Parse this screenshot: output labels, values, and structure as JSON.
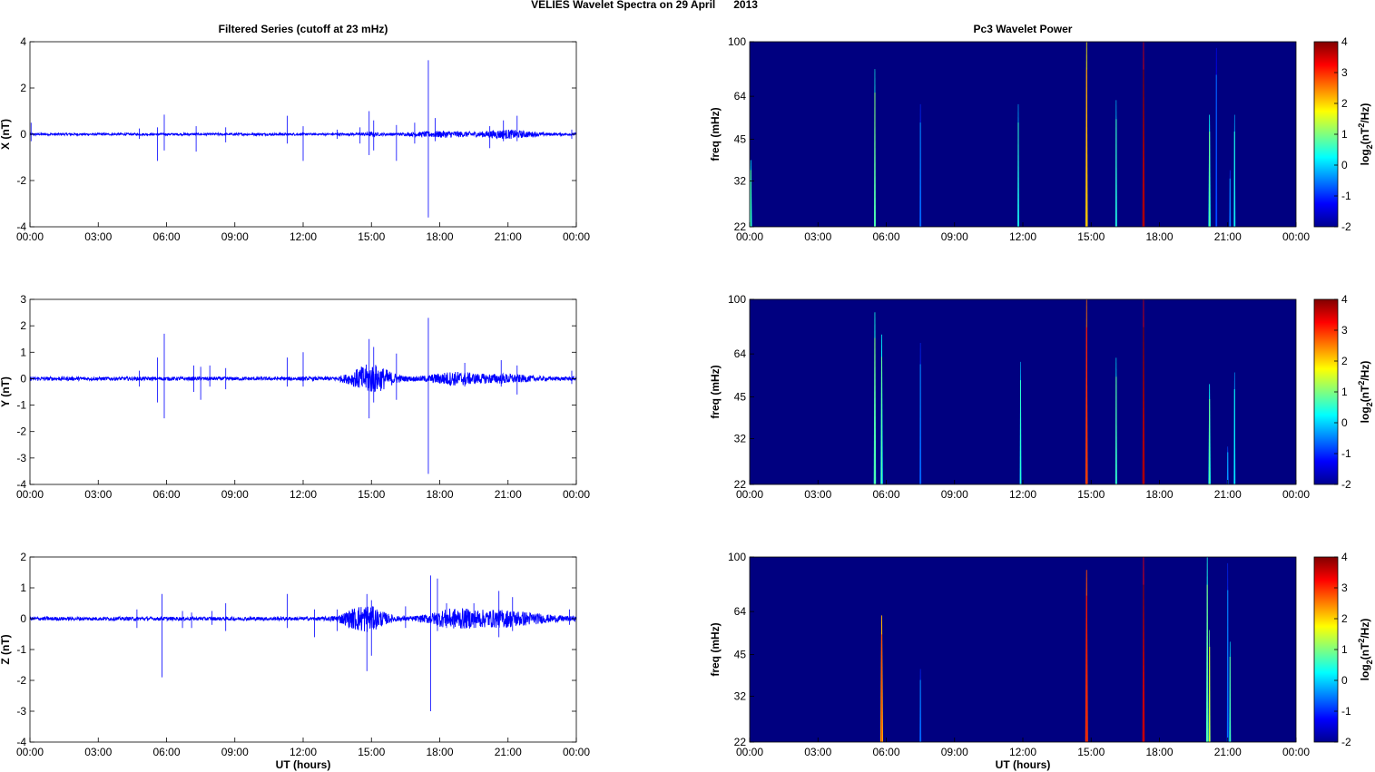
{
  "figure": {
    "suptitle": "VELIES Wavelet Spectra on 29 April      2013"
  },
  "chart_data": [
    {
      "type": "line",
      "title": "Filtered Series (cutoff at 23 mHz)",
      "xlabel": "",
      "ylabel": "X (nT)",
      "xticks": [
        "00:00",
        "03:00",
        "06:00",
        "09:00",
        "12:00",
        "15:00",
        "18:00",
        "21:00",
        "00:00"
      ],
      "xlim_hours": [
        0,
        24
      ],
      "ylim": [
        -4,
        4
      ],
      "yticks": [
        -4,
        -2,
        0,
        2,
        4
      ],
      "color": "#0000ff",
      "noise_base": 0.05,
      "bursts": [
        [
          15.0,
          0.05,
          0.7
        ],
        [
          18.2,
          0.1,
          2.8
        ],
        [
          20.8,
          0.12,
          2.0
        ],
        [
          21.5,
          0.05,
          2.3
        ]
      ],
      "spikes": [
        [
          0.05,
          0.5,
          -0.3
        ],
        [
          4.8,
          0.25,
          -0.2
        ],
        [
          5.6,
          0.3,
          -1.15
        ],
        [
          5.9,
          0.85,
          -0.7
        ],
        [
          7.3,
          0.35,
          -0.75
        ],
        [
          8.6,
          0.3,
          -0.35
        ],
        [
          11.3,
          0.8,
          -0.4
        ],
        [
          12.0,
          0.35,
          -1.15
        ],
        [
          13.5,
          0.2,
          -0.2
        ],
        [
          14.5,
          0.3,
          -0.4
        ],
        [
          14.9,
          1.0,
          -0.9
        ],
        [
          15.1,
          0.6,
          -0.7
        ],
        [
          16.1,
          0.4,
          -1.15
        ],
        [
          16.9,
          0.5,
          -0.4
        ],
        [
          17.5,
          3.2,
          -3.6
        ],
        [
          17.8,
          0.7,
          -0.3
        ],
        [
          20.2,
          0.35,
          -0.6
        ],
        [
          20.8,
          0.6,
          -0.3
        ],
        [
          21.4,
          0.8,
          -0.3
        ],
        [
          23.8,
          0.2,
          -0.2
        ]
      ]
    },
    {
      "type": "heatmap",
      "title": "Pc3 Wavelet Power",
      "xlabel": "",
      "ylabel": "freq (mHz)",
      "xticks": [
        "00:00",
        "03:00",
        "06:00",
        "09:00",
        "12:00",
        "15:00",
        "18:00",
        "21:00",
        "00:00"
      ],
      "xlim_hours": [
        0,
        24
      ],
      "ylim_mHz": [
        22,
        100
      ],
      "yscale": "log",
      "yticks": [
        22,
        32,
        45,
        64,
        100
      ],
      "colorbar_label": "log2(nT^2/Hz)",
      "colorbar_ticks": [
        -2,
        -1,
        0,
        1,
        2,
        3,
        4
      ],
      "clim": [
        -2,
        4
      ],
      "background_value": -2,
      "streaks": [
        [
          0.05,
          38,
          0.2,
          0.1
        ],
        [
          5.5,
          80,
          0.4,
          0.08
        ],
        [
          7.5,
          60,
          -1.0,
          0.08
        ],
        [
          11.8,
          60,
          -0.1,
          0.08
        ],
        [
          14.8,
          100,
          1.8,
          0.1
        ],
        [
          16.1,
          62,
          0.0,
          0.08
        ],
        [
          17.3,
          100,
          3.5,
          0.1
        ],
        [
          20.2,
          55,
          0.3,
          0.1
        ],
        [
          20.5,
          95,
          -1.2,
          0.06
        ],
        [
          21.1,
          35,
          -0.9,
          0.06
        ],
        [
          21.3,
          55,
          -0.2,
          0.06
        ]
      ]
    },
    {
      "type": "line",
      "title": "",
      "xlabel": "",
      "ylabel": "Y (nT)",
      "xticks": [
        "00:00",
        "03:00",
        "06:00",
        "09:00",
        "12:00",
        "15:00",
        "18:00",
        "21:00",
        "00:00"
      ],
      "xlim_hours": [
        0,
        24
      ],
      "ylim": [
        -4,
        3
      ],
      "yticks": [
        -4,
        -3,
        -2,
        -1,
        0,
        1,
        2,
        3
      ],
      "color": "#0000ff",
      "noise_base": 0.07,
      "bursts": [
        [
          15.0,
          0.5,
          1.8
        ],
        [
          18.6,
          0.2,
          2.2
        ],
        [
          20.8,
          0.12,
          2.5
        ]
      ],
      "spikes": [
        [
          4.8,
          0.3,
          -0.3
        ],
        [
          5.6,
          0.8,
          -0.9
        ],
        [
          5.9,
          1.7,
          -1.5
        ],
        [
          7.2,
          0.5,
          -0.5
        ],
        [
          7.5,
          0.45,
          -0.8
        ],
        [
          7.9,
          0.5,
          -0.3
        ],
        [
          8.6,
          0.4,
          -0.4
        ],
        [
          11.3,
          0.8,
          -0.3
        ],
        [
          12.0,
          1.0,
          -0.3
        ],
        [
          14.6,
          0.3,
          -0.3
        ],
        [
          14.9,
          1.5,
          -1.5
        ],
        [
          15.1,
          1.2,
          -0.9
        ],
        [
          16.1,
          0.95,
          -0.8
        ],
        [
          17.5,
          2.3,
          -3.6
        ],
        [
          19.1,
          0.6,
          -0.3
        ],
        [
          20.7,
          0.7,
          -0.3
        ],
        [
          21.4,
          0.5,
          -0.6
        ],
        [
          23.8,
          0.3,
          -0.2
        ]
      ]
    },
    {
      "type": "heatmap",
      "title": "",
      "xlabel": "",
      "ylabel": "freq (mHz)",
      "xticks": [
        "00:00",
        "03:00",
        "06:00",
        "09:00",
        "12:00",
        "15:00",
        "18:00",
        "21:00",
        "00:00"
      ],
      "xlim_hours": [
        0,
        24
      ],
      "ylim_mHz": [
        22,
        100
      ],
      "yscale": "log",
      "yticks": [
        22,
        32,
        45,
        64,
        100
      ],
      "colorbar_label": "log2(nT^2/Hz)",
      "colorbar_ticks": [
        -2,
        -1,
        0,
        1,
        2,
        3,
        4
      ],
      "clim": [
        -2,
        4
      ],
      "background_value": -2,
      "streaks": [
        [
          5.5,
          90,
          0.4,
          0.1
        ],
        [
          5.8,
          75,
          0.2,
          0.1
        ],
        [
          7.5,
          70,
          -1.0,
          0.08
        ],
        [
          11.9,
          60,
          -0.1,
          0.08
        ],
        [
          14.8,
          100,
          2.6,
          0.1
        ],
        [
          16.1,
          62,
          0.2,
          0.08
        ],
        [
          17.3,
          100,
          3.5,
          0.1
        ],
        [
          20.2,
          50,
          0.3,
          0.1
        ],
        [
          21.0,
          30,
          -0.8,
          0.06
        ],
        [
          21.3,
          55,
          -0.3,
          0.06
        ]
      ]
    },
    {
      "type": "line",
      "title": "",
      "xlabel": "UT (hours)",
      "ylabel": "Z (nT)",
      "xticks": [
        "00:00",
        "03:00",
        "06:00",
        "09:00",
        "12:00",
        "15:00",
        "18:00",
        "21:00",
        "00:00"
      ],
      "xlim_hours": [
        0,
        24
      ],
      "ylim": [
        -4,
        2
      ],
      "yticks": [
        -4,
        -3,
        -2,
        -1,
        0,
        1,
        2
      ],
      "color": "#0000ff",
      "noise_base": 0.06,
      "bursts": [
        [
          14.7,
          0.4,
          1.8
        ],
        [
          18.6,
          0.25,
          2.3
        ],
        [
          20.6,
          0.15,
          2.8
        ],
        [
          21.5,
          0.1,
          3.8
        ]
      ],
      "spikes": [
        [
          4.7,
          0.3,
          -0.3
        ],
        [
          5.8,
          0.8,
          -1.9
        ],
        [
          6.7,
          0.25,
          -0.3
        ],
        [
          7.1,
          0.2,
          -0.3
        ],
        [
          8.0,
          0.25,
          -0.2
        ],
        [
          8.6,
          0.5,
          -0.4
        ],
        [
          11.3,
          0.8,
          -0.3
        ],
        [
          12.5,
          0.3,
          -0.6
        ],
        [
          13.5,
          0.3,
          -0.4
        ],
        [
          14.8,
          0.8,
          -1.7
        ],
        [
          15.0,
          0.6,
          -1.2
        ],
        [
          16.5,
          0.4,
          -0.3
        ],
        [
          17.6,
          1.4,
          -3.0
        ],
        [
          17.9,
          1.3,
          -0.4
        ],
        [
          18.3,
          0.5,
          -0.3
        ],
        [
          19.5,
          0.5,
          -0.3
        ],
        [
          20.6,
          0.9,
          -0.6
        ],
        [
          21.2,
          0.7,
          -0.4
        ],
        [
          23.7,
          0.3,
          -0.2
        ]
      ]
    },
    {
      "type": "heatmap",
      "title": "",
      "xlabel": "UT (hours)",
      "ylabel": "freq (mHz)",
      "xticks": [
        "00:00",
        "03:00",
        "06:00",
        "09:00",
        "12:00",
        "15:00",
        "18:00",
        "21:00",
        "00:00"
      ],
      "xlim_hours": [
        0,
        24
      ],
      "ylim_mHz": [
        22,
        100
      ],
      "yscale": "log",
      "yticks": [
        22,
        32,
        45,
        64,
        100
      ],
      "colorbar_label": "log2(nT^2/Hz)",
      "colorbar_ticks": [
        -2,
        -1,
        0,
        1,
        2,
        3,
        4
      ],
      "clim": [
        -2,
        4
      ],
      "background_value": -2,
      "streaks": [
        [
          5.8,
          62,
          2.2,
          0.12
        ],
        [
          7.5,
          40,
          -1.0,
          0.08
        ],
        [
          14.8,
          90,
          2.8,
          0.12
        ],
        [
          17.3,
          100,
          3.3,
          0.1
        ],
        [
          20.1,
          100,
          0.4,
          0.1
        ],
        [
          20.2,
          55,
          1.0,
          0.08
        ],
        [
          21.0,
          95,
          -1.0,
          0.06
        ],
        [
          21.1,
          50,
          0.2,
          0.08
        ]
      ]
    }
  ]
}
